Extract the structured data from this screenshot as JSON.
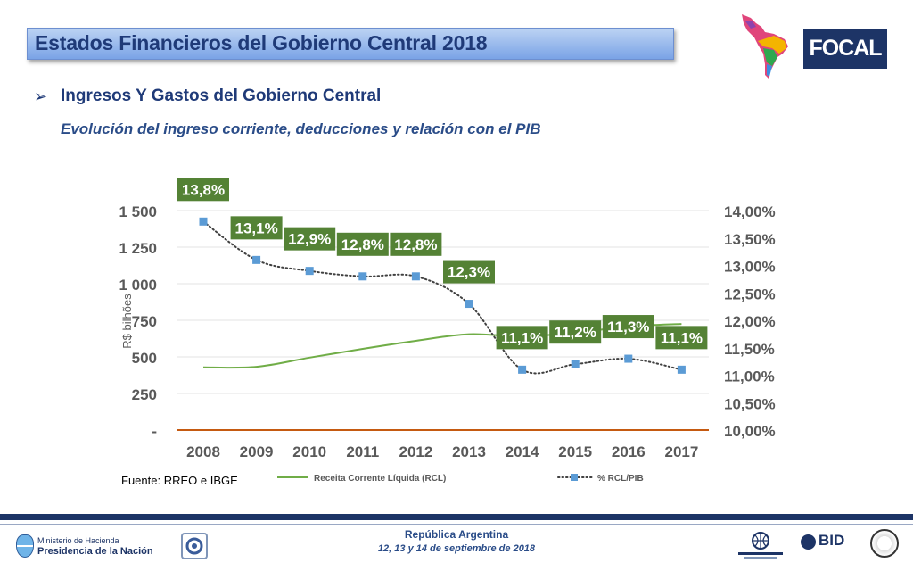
{
  "header": {
    "title": "Estados Financieros del Gobierno Central 2018",
    "logo_text": "FOCAL"
  },
  "section": {
    "heading": "Ingresos Y Gastos del Gobierno Central",
    "subtitle": "Evolución del ingreso corriente, deducciones y relación con el PIB"
  },
  "chart_data": {
    "type": "line",
    "categories": [
      "2008",
      "2009",
      "2010",
      "2011",
      "2012",
      "2013",
      "2014",
      "2015",
      "2016",
      "2017"
    ],
    "series": [
      {
        "name": "Receita Corrente Líquida (RCL)",
        "axis": "left",
        "color": "#70ad47",
        "values": [
          428,
          432,
          495,
          555,
          610,
          655,
          640,
          665,
          708,
          725
        ]
      },
      {
        "name": "% RCL/PIB",
        "axis": "right",
        "color": "#5b9bd5",
        "values": [
          13.8,
          13.1,
          12.9,
          12.8,
          12.8,
          12.3,
          11.1,
          11.2,
          11.3,
          11.1
        ],
        "data_labels": [
          "13,8%",
          "13,1%",
          "12,9%",
          "12,8%",
          "12,8%",
          "12,3%",
          "11,1%",
          "11,2%",
          "11,3%",
          "11,1%"
        ]
      }
    ],
    "left_axis": {
      "label": "R$ bilhões",
      "range": [
        0,
        1500
      ],
      "ticks": [
        "-",
        "250",
        "500",
        "750",
        "1 000",
        "1 250",
        "1 500"
      ]
    },
    "right_axis": {
      "range": [
        10,
        14
      ],
      "ticks": [
        "10,00%",
        "10,50%",
        "11,00%",
        "11,50%",
        "12,00%",
        "12,50%",
        "13,00%",
        "13,50%",
        "14,00%"
      ]
    },
    "grid": true,
    "legend_placement": "bottom",
    "data_label_color": "#548235"
  },
  "source": "Fuente: RREO e IBGE",
  "footer": {
    "ministerio_line1": "Ministerio de Hacienda",
    "ministerio_line2": "Presidencia de la Nación",
    "country": "República Argentina",
    "dates": "12, 13 y 14 de septiembre de 2018",
    "bid_text": "BID"
  }
}
